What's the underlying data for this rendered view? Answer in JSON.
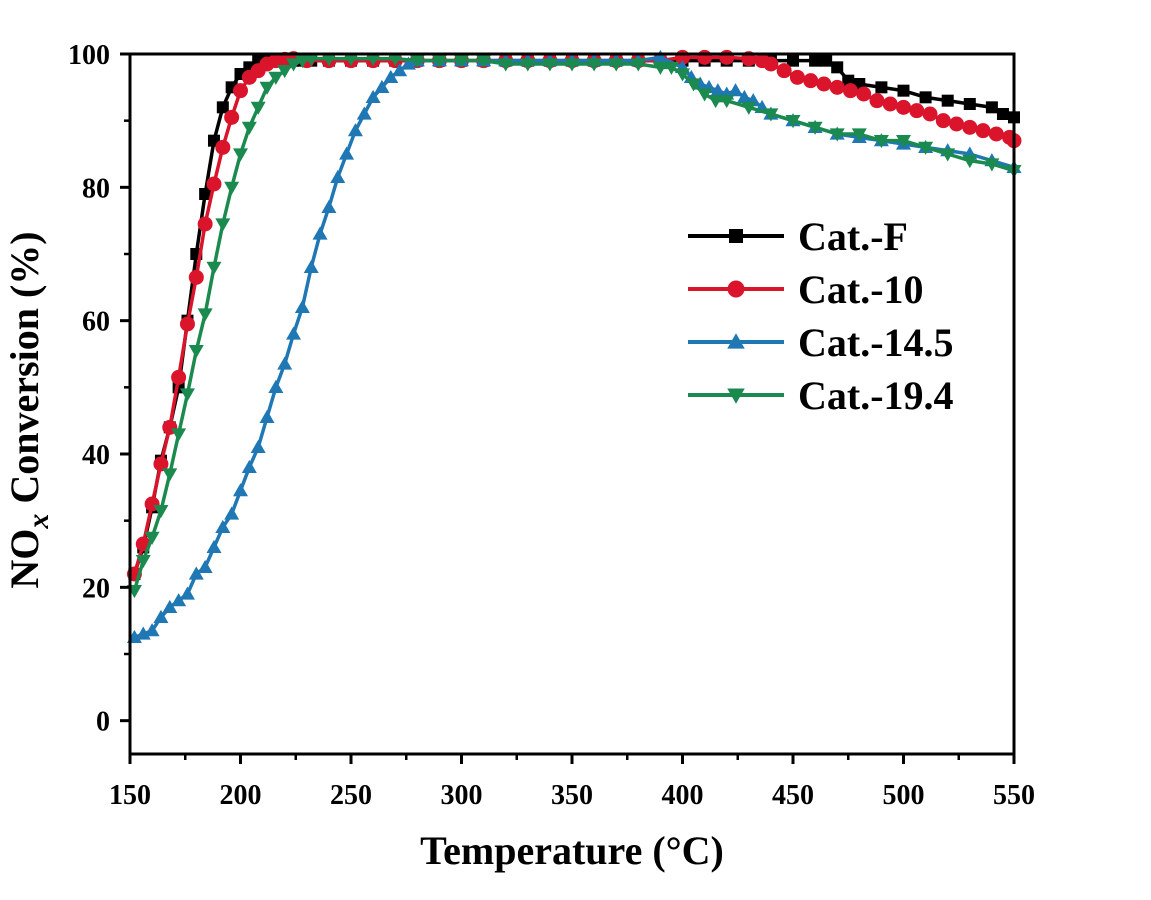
{
  "chart_data": {
    "type": "line",
    "xlabel": "Temperature (°C)",
    "ylabel_main": "NO",
    "ylabel_sub": "x",
    "ylabel_rest": " Conversion (%)",
    "xlim": [
      150,
      550
    ],
    "ylim": [
      -5,
      100
    ],
    "xticks": [
      150,
      200,
      250,
      300,
      350,
      400,
      450,
      500,
      550
    ],
    "yticks": [
      0,
      20,
      40,
      60,
      80,
      100
    ],
    "grid": false,
    "legend_position": "center-right",
    "series": [
      {
        "name": "Cat.-F",
        "color": "#000000",
        "marker": "square",
        "x": [
          152,
          156,
          160,
          164,
          168,
          172,
          176,
          180,
          184,
          188,
          192,
          196,
          200,
          204,
          208,
          212,
          216,
          220,
          224,
          228,
          232,
          240,
          250,
          260,
          270,
          280,
          290,
          300,
          310,
          320,
          330,
          340,
          350,
          360,
          370,
          380,
          390,
          400,
          410,
          420,
          430,
          440,
          450,
          460,
          465,
          470,
          475,
          480,
          490,
          500,
          510,
          520,
          530,
          540,
          545,
          550
        ],
        "y": [
          22,
          26,
          32,
          39,
          44,
          50,
          60,
          70,
          79,
          87,
          92,
          95,
          97,
          98,
          99,
          99,
          99,
          99,
          99,
          99,
          99,
          99,
          99,
          99,
          99,
          99,
          99,
          99,
          99,
          99,
          99,
          99,
          99,
          99,
          99,
          99,
          99,
          99,
          99,
          99,
          99,
          99,
          99,
          99,
          99,
          98,
          96,
          95.5,
          95,
          94.5,
          93.5,
          93,
          92.5,
          92,
          91,
          90.5
        ]
      },
      {
        "name": "Cat.-10",
        "color": "#d9142b",
        "marker": "circle",
        "x": [
          152,
          156,
          160,
          164,
          168,
          172,
          176,
          180,
          184,
          188,
          192,
          196,
          200,
          204,
          208,
          212,
          216,
          220,
          224,
          230,
          240,
          250,
          260,
          270,
          280,
          290,
          300,
          310,
          320,
          330,
          340,
          350,
          360,
          370,
          380,
          390,
          400,
          410,
          420,
          430,
          436,
          440,
          446,
          452,
          458,
          464,
          470,
          476,
          482,
          488,
          494,
          500,
          506,
          512,
          518,
          524,
          530,
          536,
          542,
          548,
          550
        ],
        "y": [
          22,
          26.5,
          32.5,
          38.5,
          44,
          51.5,
          59.5,
          66.5,
          74.5,
          80.5,
          86,
          90.5,
          94.5,
          96.5,
          97.5,
          98.5,
          99,
          99.2,
          99.3,
          99,
          99,
          99,
          99,
          99,
          99,
          99,
          99,
          99,
          99,
          99,
          99,
          99,
          99,
          99,
          99,
          99,
          99.5,
          99.5,
          99.5,
          99.3,
          99,
          98.5,
          97.5,
          96.5,
          96,
          95.5,
          95,
          94.5,
          94,
          93,
          92.5,
          92,
          91.5,
          91,
          90,
          89.5,
          89,
          88.5,
          88,
          87.5,
          87
        ]
      },
      {
        "name": "Cat.-14.5",
        "color": "#1f77b4",
        "marker": "triangle-up",
        "x": [
          152,
          156,
          160,
          164,
          168,
          172,
          176,
          180,
          184,
          188,
          192,
          196,
          200,
          204,
          208,
          212,
          216,
          220,
          224,
          228,
          232,
          236,
          240,
          244,
          248,
          252,
          256,
          260,
          264,
          268,
          272,
          276,
          280,
          290,
          300,
          310,
          320,
          330,
          340,
          350,
          360,
          370,
          380,
          390,
          400,
          404,
          408,
          412,
          416,
          420,
          424,
          428,
          432,
          436,
          440,
          450,
          460,
          470,
          480,
          490,
          500,
          510,
          520,
          530,
          540,
          550
        ],
        "y": [
          12.5,
          13,
          13.5,
          15.5,
          17,
          18,
          19,
          22,
          23,
          26,
          29,
          31,
          34.5,
          38,
          41,
          45.5,
          50,
          53.5,
          58,
          62,
          68,
          73,
          77,
          81.5,
          85,
          88.5,
          91,
          93.5,
          95,
          96.5,
          97.5,
          98.5,
          99,
          99,
          99,
          99,
          99,
          99,
          99,
          99,
          99,
          99,
          99,
          99.5,
          98,
          96.5,
          95.5,
          95,
          94.5,
          94,
          94.5,
          93.5,
          93,
          92,
          91,
          90,
          89,
          88,
          87.5,
          87,
          86.5,
          86,
          85.5,
          85,
          84,
          83
        ]
      },
      {
        "name": "Cat.-19.4",
        "color": "#1b8a4e",
        "marker": "triangle-down",
        "x": [
          152,
          156,
          160,
          164,
          168,
          172,
          176,
          180,
          184,
          188,
          192,
          196,
          200,
          204,
          208,
          212,
          216,
          220,
          224,
          228,
          232,
          240,
          250,
          260,
          270,
          280,
          290,
          300,
          310,
          320,
          330,
          340,
          350,
          360,
          370,
          380,
          390,
          395,
          400,
          405,
          410,
          415,
          420,
          430,
          440,
          450,
          460,
          470,
          480,
          490,
          500,
          510,
          520,
          530,
          540,
          550
        ],
        "y": [
          19.5,
          24,
          27.5,
          31.5,
          37,
          43,
          49,
          55.5,
          61,
          68,
          74.5,
          80,
          85,
          89,
          92,
          95,
          96.5,
          97.5,
          98.5,
          99,
          99.3,
          99.3,
          99.3,
          99.3,
          99.3,
          99,
          99,
          99,
          99,
          98.5,
          98.5,
          98.5,
          98.5,
          98.5,
          98.5,
          98.5,
          98,
          98,
          97,
          95.5,
          94,
          93,
          93,
          92,
          91,
          90,
          89,
          88,
          88,
          87,
          87,
          86,
          85,
          84,
          83.5,
          82.5
        ]
      }
    ]
  }
}
